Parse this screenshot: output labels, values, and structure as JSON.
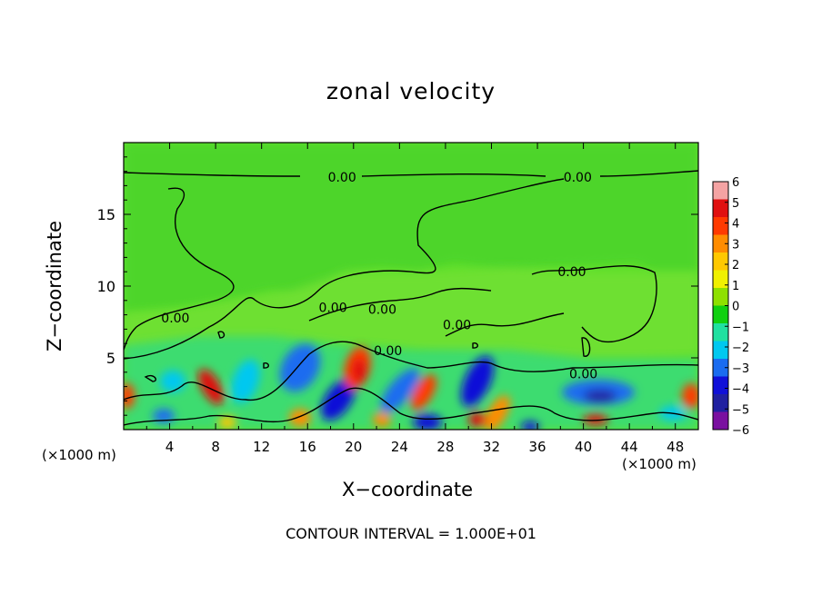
{
  "chart_data": {
    "type": "heatmap",
    "title": "zonal velocity",
    "xlabel": "X−coordinate",
    "ylabel": "Z−coordinate",
    "x_unit_left": "(×1000 m)",
    "x_unit_right": "(×1000 m)",
    "footer": "CONTOUR INTERVAL = 1.000E+01",
    "xlim": [
      0,
      50
    ],
    "ylim": [
      0,
      20
    ],
    "xticks": [
      4,
      8,
      12,
      16,
      20,
      24,
      28,
      32,
      36,
      40,
      44,
      48
    ],
    "yticks": [
      5,
      10,
      15
    ],
    "colorbar": {
      "ticks": [
        "6",
        "5",
        "4",
        "3",
        "2",
        "1",
        "0",
        "−1",
        "−2",
        "−3",
        "−4",
        "−5",
        "−6"
      ],
      "levels": [
        6,
        5,
        4,
        3,
        2,
        1,
        0,
        -1,
        -2,
        -3,
        -4,
        -5,
        -6
      ],
      "colors": [
        "#f4a3a3",
        "#e01010",
        "#ff3a00",
        "#ff8c00",
        "#ffc800",
        "#f0f000",
        "#8ee000",
        "#10d010",
        "#20e0a0",
        "#00c8f0",
        "#1a6cf0",
        "#1010d8",
        "#2020a0",
        "#7a10a0"
      ]
    },
    "contour_label": "0.00",
    "contour_labels": [
      {
        "x": 19.0,
        "z": 17.6
      },
      {
        "x": 39.5,
        "z": 17.6
      },
      {
        "x": 39.0,
        "z": 11.0
      },
      {
        "x": 4.5,
        "z": 7.8
      },
      {
        "x": 18.2,
        "z": 8.5
      },
      {
        "x": 22.5,
        "z": 8.4
      },
      {
        "x": 29.0,
        "z": 7.3
      },
      {
        "x": 23.0,
        "z": 5.5
      },
      {
        "x": 40.0,
        "z": 3.9
      }
    ],
    "grid": false
  }
}
